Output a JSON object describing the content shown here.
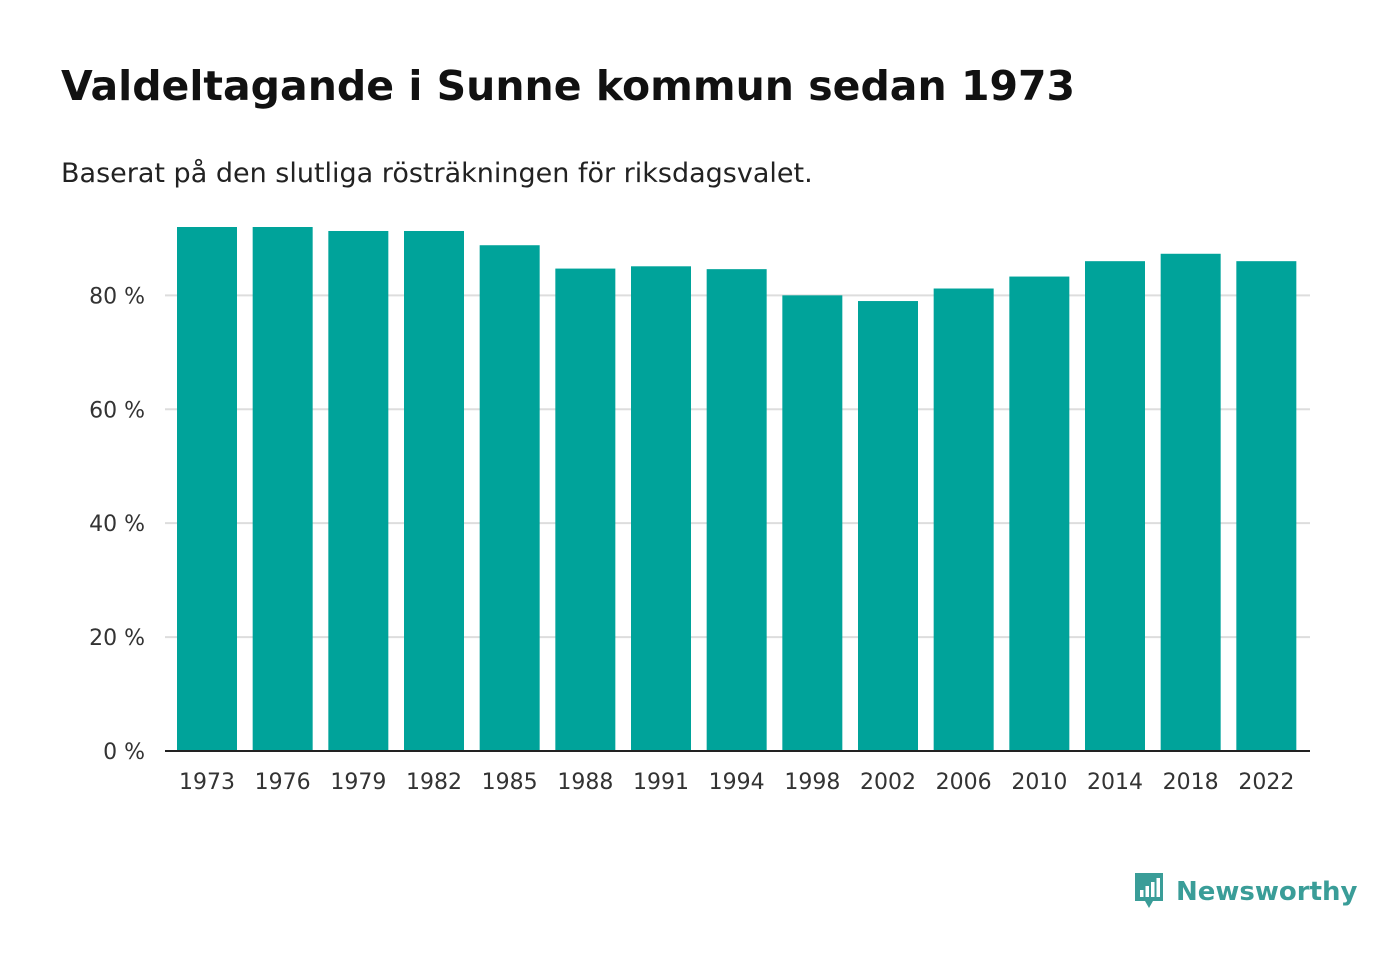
{
  "header": {
    "title": "Valdeltagande i Sunne kommun sedan 1973",
    "subtitle": "Baserat på den slutliga rösträkningen för riksdagsvalet."
  },
  "brand": {
    "name": "Newsworthy",
    "logo_icon": "bar-chart-speech-bubble-icon",
    "color": "#3a9d98"
  },
  "chart_data": {
    "type": "bar",
    "categories": [
      "1973",
      "1976",
      "1979",
      "1982",
      "1985",
      "1988",
      "1991",
      "1994",
      "1998",
      "2002",
      "2006",
      "2010",
      "2014",
      "2018",
      "2022"
    ],
    "values": [
      92.0,
      92.0,
      91.3,
      91.3,
      88.8,
      84.7,
      85.1,
      84.6,
      80.0,
      79.0,
      81.2,
      83.3,
      86.0,
      87.3,
      86.0
    ],
    "title": "Valdeltagande i Sunne kommun sedan 1973",
    "subtitle": "Baserat på den slutliga rösträkningen för riksdagsvalet.",
    "xlabel": "",
    "ylabel": "",
    "ylim": [
      0,
      92
    ],
    "yticks": [
      0,
      20,
      40,
      60,
      80
    ],
    "ytick_labels": [
      "0 %",
      "20 %",
      "40 %",
      "60 %",
      "80 %"
    ],
    "grid": true,
    "bar_color": "#00a39a",
    "grid_color": "#dddddd"
  }
}
